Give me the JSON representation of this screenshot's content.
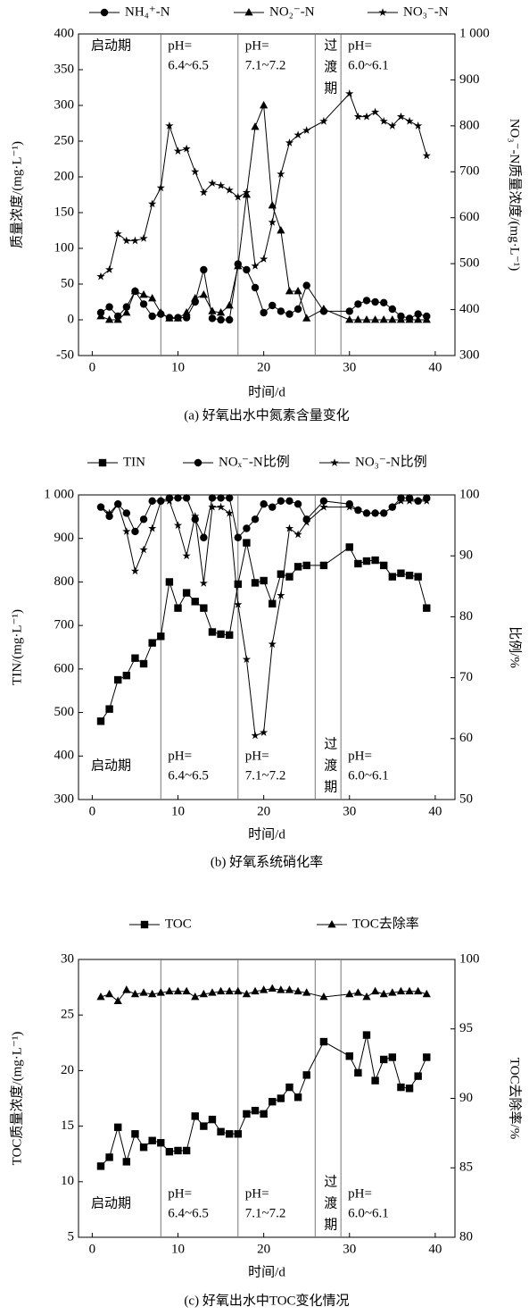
{
  "chart_data": [
    {
      "type": "line",
      "title": "(a) 好氧出水中氮素含量变化",
      "x_label": "时间/d",
      "y_label": "质量浓度/(mg·L⁻¹)",
      "y2_label": "NO₃⁻-N质量浓度/(mg·L⁻¹)",
      "x": [
        1,
        2,
        3,
        4,
        5,
        6,
        7,
        8,
        9,
        10,
        11,
        12,
        13,
        14,
        15,
        16,
        17,
        18,
        19,
        20,
        21,
        22,
        23,
        24,
        25,
        27,
        30,
        31,
        32,
        33,
        34,
        35,
        36,
        37,
        38,
        39
      ],
      "xlim": [
        -1.6,
        42.3
      ],
      "xticks": [
        0,
        10,
        20,
        30,
        40
      ],
      "ylim": [
        -50,
        400
      ],
      "yticks": [
        -50,
        0,
        50,
        100,
        150,
        200,
        250,
        300,
        350,
        400
      ],
      "y2lim": [
        300,
        1000
      ],
      "y2ticks": [
        300,
        400,
        500,
        600,
        700,
        800,
        900,
        {
          "value": 1000,
          "label": "1 000"
        }
      ],
      "phase_boundaries": [
        8,
        17,
        26,
        29
      ],
      "phase_label_position": "top",
      "phases": [
        [
          "启动期"
        ],
        [
          "pH=",
          "6.4~6.5"
        ],
        [
          "pH=",
          "7.1~7.2"
        ],
        [
          "过",
          "渡",
          "期"
        ],
        [
          "pH=",
          "6.0~6.1"
        ]
      ],
      "series": [
        {
          "name": "NH₄⁺-N",
          "color": "#000000",
          "marker": "circle",
          "values": [
            10,
            18,
            5,
            18,
            40,
            22,
            5,
            8,
            3,
            3,
            3,
            25,
            70,
            2,
            0,
            0,
            78,
            70,
            45,
            10,
            20,
            12,
            8,
            15,
            48,
            12,
            12,
            22,
            27,
            25,
            24,
            15,
            5,
            2,
            8,
            5
          ]
        },
        {
          "name": "NO₂⁻-N",
          "color": "#000000",
          "marker": "triangle",
          "values": [
            5,
            0,
            0,
            10,
            40,
            35,
            30,
            10,
            2,
            2,
            10,
            30,
            35,
            12,
            10,
            20,
            75,
            175,
            270,
            300,
            160,
            125,
            40,
            40,
            2,
            15,
            0,
            0,
            0,
            0,
            0,
            0,
            0,
            0,
            0,
            0
          ]
        },
        {
          "name": "NO₃⁻-N",
          "color": "#000000",
          "marker": "star",
          "axis": "y2",
          "values": [
            472,
            487,
            565,
            550,
            550,
            555,
            630,
            665,
            800,
            745,
            750,
            700,
            655,
            675,
            670,
            660,
            645,
            655,
            495,
            510,
            590,
            695,
            763,
            780,
            790,
            810,
            870,
            820,
            820,
            830,
            810,
            800,
            820,
            810,
            800,
            735
          ]
        }
      ]
    },
    {
      "type": "line",
      "title": "(b) 好氧系统硝化率",
      "x_label": "时间/d",
      "y_label": "TIN/(mg·L⁻¹)",
      "y2_label": "比例/%",
      "x": [
        1,
        2,
        3,
        4,
        5,
        6,
        7,
        8,
        9,
        10,
        11,
        12,
        13,
        14,
        15,
        16,
        17,
        18,
        19,
        20,
        21,
        22,
        23,
        24,
        25,
        27,
        30,
        31,
        32,
        33,
        34,
        35,
        36,
        37,
        38,
        39
      ],
      "xlim": [
        -1.6,
        42.3
      ],
      "xticks": [
        0,
        10,
        20,
        30,
        40
      ],
      "ylim": [
        300,
        1000
      ],
      "yticks": [
        300,
        400,
        500,
        600,
        700,
        800,
        900,
        {
          "value": 1000,
          "label": "1 000"
        }
      ],
      "y2lim": [
        50,
        100
      ],
      "y2ticks": [
        50,
        60,
        70,
        80,
        90,
        100
      ],
      "phase_boundaries": [
        8,
        17,
        26,
        29
      ],
      "phase_label_position": "bottom",
      "phases": [
        [
          "启动期"
        ],
        [
          "pH=",
          "6.4~6.5"
        ],
        [
          "pH=",
          "7.1~7.2"
        ],
        [
          "过",
          "渡",
          "期"
        ],
        [
          "pH=",
          "6.0~6.1"
        ]
      ],
      "series": [
        {
          "name": "TIN",
          "color": "#000000",
          "marker": "square",
          "values": [
            480,
            508,
            575,
            585,
            625,
            612,
            660,
            675,
            800,
            740,
            775,
            755,
            740,
            685,
            680,
            678,
            795,
            890,
            798,
            803,
            750,
            818,
            812,
            835,
            838,
            838,
            880,
            842,
            848,
            850,
            838,
            812,
            820,
            815,
            812,
            740
          ]
        },
        {
          "name": "NOₓ⁻-N比例",
          "color": "#000000",
          "marker": "circle",
          "axis": "y2",
          "values": [
            98,
            96.5,
            98.5,
            97,
            94,
            96,
            99,
            99,
            99.5,
            99.5,
            99.5,
            96,
            93,
            99.5,
            99.5,
            99.5,
            93,
            94.5,
            96,
            98.5,
            98,
            99,
            99,
            98.5,
            96,
            99,
            98.5,
            97.5,
            97,
            97,
            97,
            98,
            99.5,
            99.5,
            99,
            99.5
          ]
        },
        {
          "name": "NO₃⁻-N比例",
          "color": "#000000",
          "marker": "star",
          "axis": "y2",
          "values": [
            98,
            97,
            98.5,
            94,
            87.5,
            91,
            94.5,
            99,
            99,
            95,
            90,
            96.5,
            85.5,
            98,
            98,
            97,
            82,
            73,
            60.5,
            61,
            75.5,
            83.5,
            94.5,
            93.5,
            95.5,
            98,
            98,
            97.5,
            97,
            97,
            97,
            98,
            99,
            99,
            99,
            99
          ]
        }
      ]
    },
    {
      "type": "line",
      "title": "(c) 好氧出水中TOC变化情况",
      "x_label": "时间/d",
      "y_label": "TOC质量浓度/(mg·L⁻¹)",
      "y2_label": "TOC去除率/%",
      "x": [
        1,
        2,
        3,
        4,
        5,
        6,
        7,
        8,
        9,
        10,
        11,
        12,
        13,
        14,
        15,
        16,
        17,
        18,
        19,
        20,
        21,
        22,
        23,
        24,
        25,
        27,
        30,
        31,
        32,
        33,
        34,
        35,
        36,
        37,
        38,
        39
      ],
      "xlim": [
        -1.6,
        42.3
      ],
      "xticks": [
        0,
        10,
        20,
        30,
        40
      ],
      "ylim": [
        5,
        30
      ],
      "yticks": [
        5,
        10,
        15,
        20,
        25,
        30
      ],
      "y2lim": [
        80,
        100
      ],
      "y2ticks": [
        80,
        85,
        90,
        95,
        100
      ],
      "phase_boundaries": [
        8,
        17,
        26,
        29
      ],
      "phase_label_position": "bottom",
      "phases": [
        [
          "启动期"
        ],
        [
          "pH=",
          "6.4~6.5"
        ],
        [
          "pH=",
          "7.1~7.2"
        ],
        [
          "过",
          "渡",
          "期"
        ],
        [
          "pH=",
          "6.0~6.1"
        ]
      ],
      "series": [
        {
          "name": "TOC",
          "color": "#000000",
          "marker": "square",
          "values": [
            11.4,
            12.2,
            14.9,
            11.8,
            14.3,
            13.1,
            13.7,
            13.5,
            12.7,
            12.8,
            12.8,
            15.9,
            15.0,
            15.6,
            14.5,
            14.3,
            14.3,
            16.1,
            16.4,
            16.1,
            17.2,
            17.5,
            18.5,
            17.6,
            19.6,
            22.6,
            21.3,
            19.8,
            23.2,
            19.1,
            21.0,
            21.2,
            18.5,
            18.4,
            19.5,
            21.2
          ]
        },
        {
          "name": "TOC去除率",
          "color": "#000000",
          "marker": "triangle",
          "axis": "y2",
          "values": [
            97.3,
            97.5,
            97.0,
            97.8,
            97.5,
            97.6,
            97.5,
            97.6,
            97.7,
            97.7,
            97.7,
            97.3,
            97.5,
            97.6,
            97.7,
            97.7,
            97.7,
            97.5,
            97.7,
            97.8,
            97.9,
            97.8,
            97.8,
            97.7,
            97.6,
            97.3,
            97.5,
            97.6,
            97.3,
            97.7,
            97.5,
            97.6,
            97.7,
            97.7,
            97.7,
            97.5
          ]
        }
      ]
    }
  ]
}
